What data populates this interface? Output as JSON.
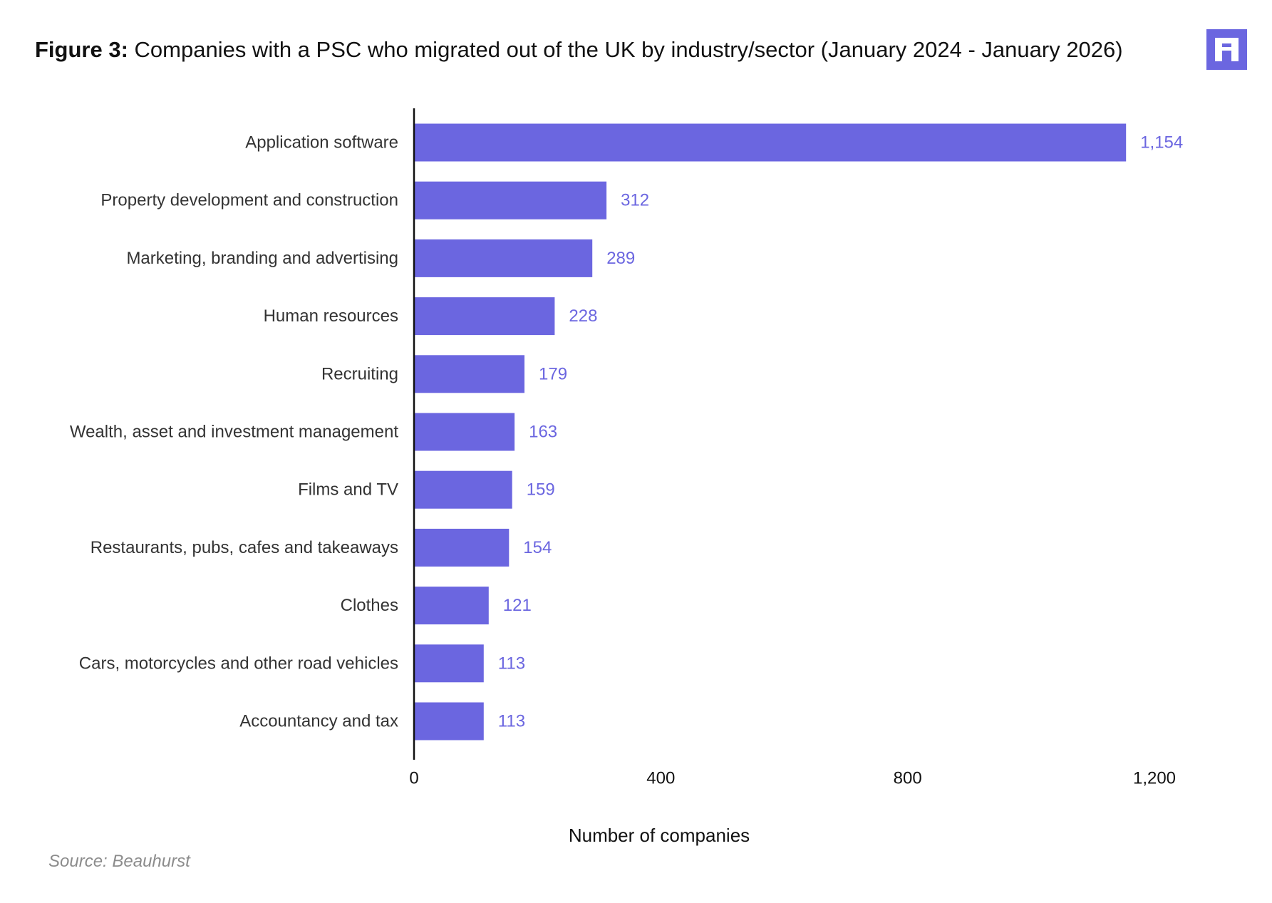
{
  "header": {
    "title_prefix": "Figure 3:",
    "title_rest": " Companies with a PSC who migrated out of the UK by industry/sector (January 2024 - January 2026)"
  },
  "logo": {
    "icon": "beauhurst-logo-icon",
    "color": "#6b66e0"
  },
  "source": "Source: Beauhurst",
  "colors": {
    "bar": "#6b66e0",
    "value_label": "#6b66e0",
    "category_label": "#333333",
    "axis": "#111111"
  },
  "chart_data": {
    "type": "bar",
    "orientation": "horizontal",
    "title": "",
    "xlabel": "Number of companies",
    "ylabel": "",
    "xlim": [
      0,
      1200
    ],
    "xticks": [
      0,
      400,
      800,
      1200
    ],
    "xtick_labels": [
      "0",
      "400",
      "800",
      "1,200"
    ],
    "grid": false,
    "categories": [
      "Application software",
      "Property development and construction",
      "Marketing, branding and advertising",
      "Human resources",
      "Recruiting",
      "Wealth, asset and investment management",
      "Films and TV",
      "Restaurants, pubs, cafes and takeaways",
      "Clothes",
      "Cars, motorcycles and other road vehicles",
      "Accountancy and tax"
    ],
    "values": [
      1154,
      312,
      289,
      228,
      179,
      163,
      159,
      154,
      121,
      113,
      113
    ],
    "value_labels": [
      "1,154",
      "312",
      "289",
      "228",
      "179",
      "163",
      "159",
      "154",
      "121",
      "113",
      "113"
    ]
  }
}
